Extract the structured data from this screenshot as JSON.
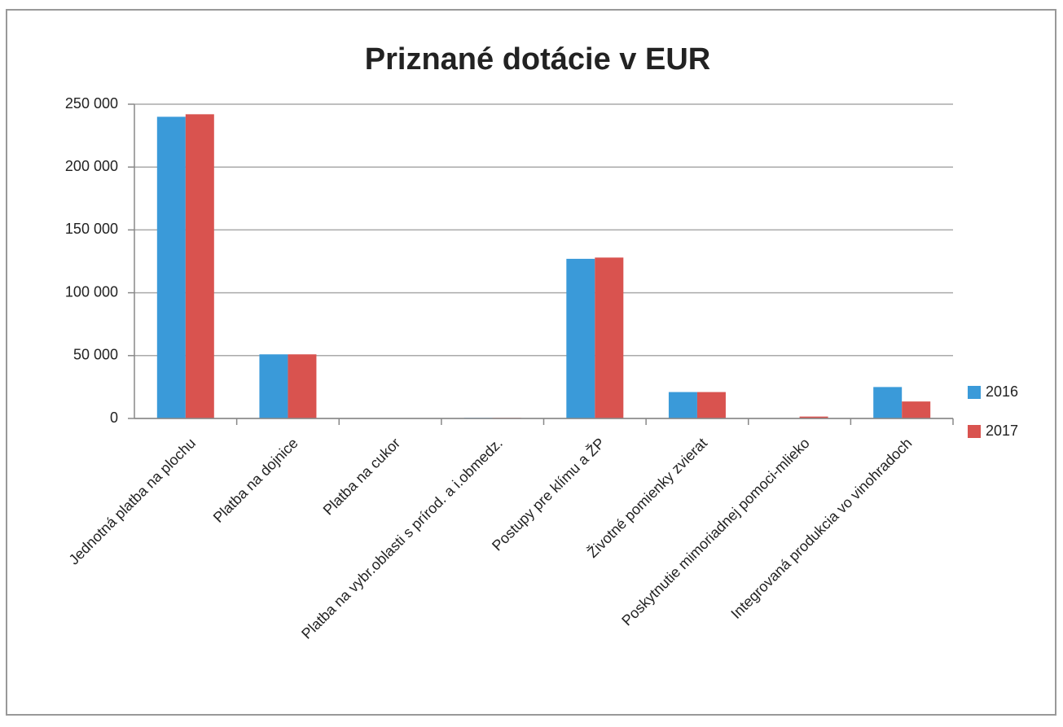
{
  "chart_data": {
    "type": "bar",
    "title": "Priznané dotácie v EUR",
    "categories": [
      "Jednotná platba na plochu",
      "Platba na dojnice",
      "Platba na cukor",
      "Platba na vybr.oblasti s prírod. a i.obmedz.",
      "Postupy pre klímu a ŽP",
      "Životné pomienky zvierat",
      "Poskytnutie mimoriadnej pomoci-mlieko",
      "Integrovaná produkcia vo vinohradoch"
    ],
    "series": [
      {
        "name": "2016",
        "color": "#3a9ad9",
        "values": [
          240000,
          51000,
          0,
          500,
          127000,
          21000,
          0,
          25000
        ]
      },
      {
        "name": "2017",
        "color": "#d9534f",
        "values": [
          242000,
          51000,
          0,
          500,
          128000,
          21000,
          1500,
          13500
        ]
      }
    ],
    "ylim": [
      0,
      250000
    ],
    "yticks": [
      0,
      {
        "value": 50000,
        "label": "50 000"
      },
      {
        "value": 100000,
        "label": "100 000"
      },
      {
        "value": 150000,
        "label": "150 000"
      },
      {
        "value": 200000,
        "label": "200 000"
      },
      {
        "value": 250000,
        "label": "250 000"
      }
    ],
    "grid": true,
    "legend": "right"
  }
}
